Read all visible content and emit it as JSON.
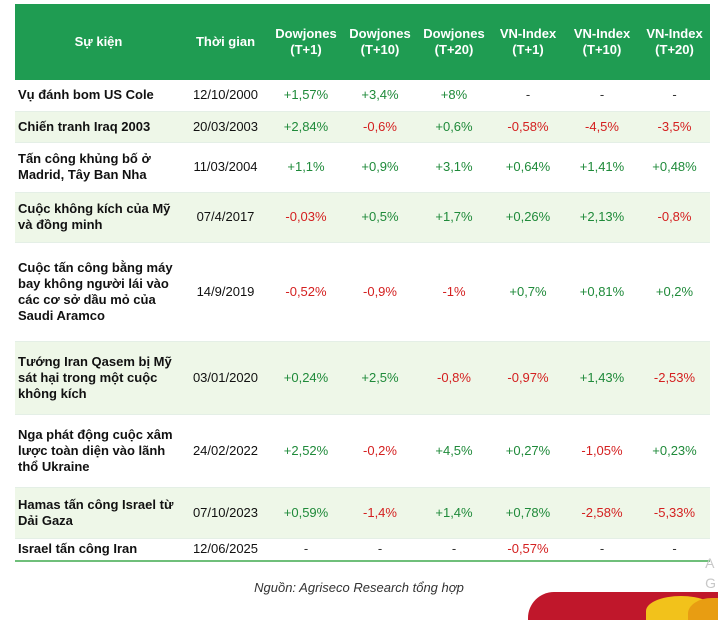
{
  "headers": [
    {
      "l1": "Sự kiện",
      "l2": ""
    },
    {
      "l1": "Thời gian",
      "l2": ""
    },
    {
      "l1": "Dowjones",
      "l2": "(T+1)"
    },
    {
      "l1": "Dowjones",
      "l2": "(T+10)"
    },
    {
      "l1": "Dowjones",
      "l2": "(T+20)"
    },
    {
      "l1": "VN-Index",
      "l2": "(T+1)"
    },
    {
      "l1": "VN-Index",
      "l2": "(T+10)"
    },
    {
      "l1": "VN-Index",
      "l2": "(T+20)"
    }
  ],
  "rows": [
    {
      "event": "Vụ đánh bom US Cole",
      "date": "12/10/2000",
      "dj1": "+1,57%",
      "dj10": "+3,4%",
      "dj20": "+8%",
      "vn1": "-",
      "vn10": "-",
      "vn20": "-"
    },
    {
      "event": "Chiến tranh Iraq 2003",
      "date": "20/03/2003",
      "dj1": "+2,84%",
      "dj10": "-0,6%",
      "dj20": "+0,6%",
      "vn1": "-0,58%",
      "vn10": "-4,5%",
      "vn20": "-3,5%"
    },
    {
      "event": "Tấn công khủng bố ở Madrid, Tây Ban Nha",
      "date": "11/03/2004",
      "dj1": "+1,1%",
      "dj10": "+0,9%",
      "dj20": "+3,1%",
      "vn1": "+0,64%",
      "vn10": "+1,41%",
      "vn20": "+0,48%"
    },
    {
      "event": "Cuộc không kích của Mỹ và đồng minh",
      "date": "07/4/2017",
      "dj1": "-0,03%",
      "dj10": "+0,5%",
      "dj20": "+1,7%",
      "vn1": "+0,26%",
      "vn10": "+2,13%",
      "vn20": "-0,8%"
    },
    {
      "event": "Cuộc tấn công bằng máy bay không người lái vào các cơ sở dầu mỏ của Saudi Aramco",
      "date": "14/9/2019",
      "dj1": "-0,52%",
      "dj10": "-0,9%",
      "dj20": "-1%",
      "vn1": "+0,7%",
      "vn10": "+0,81%",
      "vn20": "+0,2%"
    },
    {
      "event": "Tướng Iran Qasem bị Mỹ sát hại trong một cuộc không kích",
      "date": "03/01/2020",
      "dj1": "+0,24%",
      "dj10": "+2,5%",
      "dj20": "-0,8%",
      "vn1": "-0,97%",
      "vn10": "+1,43%",
      "vn20": "-2,53%"
    },
    {
      "event": "Nga phát động cuộc xâm lược toàn diện vào lãnh thổ Ukraine",
      "date": "24/02/2022",
      "dj1": "+2,52%",
      "dj10": "-0,2%",
      "dj20": "+4,5%",
      "vn1": "+0,27%",
      "vn10": "-1,05%",
      "vn20": "+0,23%"
    },
    {
      "event": "Hamas tấn công Israel từ Dải Gaza",
      "date": "07/10/2023",
      "dj1": "+0,59%",
      "dj10": "-1,4%",
      "dj20": "+1,4%",
      "vn1": "+0,78%",
      "vn10": "-2,58%",
      "vn20": "-5,33%"
    },
    {
      "event": "Israel tấn công Iran",
      "date": "12/06/2025",
      "dj1": "-",
      "dj10": "-",
      "dj20": "-",
      "vn1": "-0,57%",
      "vn10": "-",
      "vn20": "-"
    }
  ],
  "source": "Nguồn: Agriseco Research tổng hợp",
  "ghost": {
    "a": "A",
    "b": "G"
  },
  "colors": {
    "header_bg": "#1f9c52",
    "alt_row_bg": "#eef7e8",
    "positive": "#1f8a3a",
    "negative": "#d42020"
  }
}
